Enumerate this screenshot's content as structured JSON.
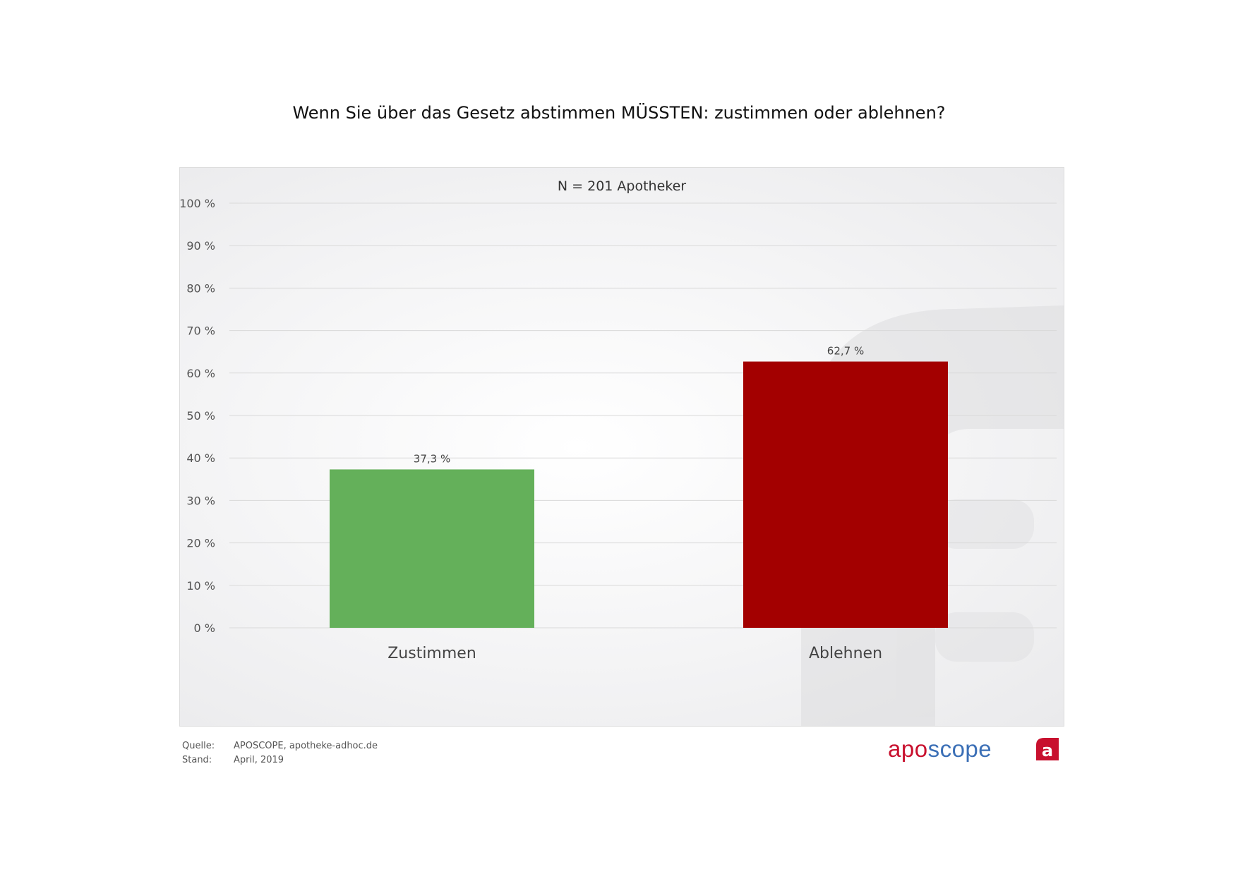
{
  "title": "Wenn Sie über das Gesetz abstimmen MÜSSTEN: zustimmen oder ablehnen?",
  "chart_data": {
    "type": "bar",
    "subtitle": "N = 201 Apotheker",
    "categories": [
      "Zustimmen",
      "Ablehnen"
    ],
    "values": [
      37.3,
      62.7
    ],
    "value_labels": [
      "37,3 %",
      "62,7 %"
    ],
    "colors": [
      "#64b05a",
      "#a30000"
    ],
    "ylim": [
      0,
      100
    ],
    "yticks": [
      0,
      10,
      20,
      30,
      40,
      50,
      60,
      70,
      80,
      90,
      100
    ],
    "ytick_labels": [
      "0 %",
      "10 %",
      "20 %",
      "30 %",
      "40 %",
      "50 %",
      "60 %",
      "70 %",
      "80 %",
      "90 %",
      "100 %"
    ],
    "grid": true,
    "legend": "none"
  },
  "footer": {
    "source_label": "Quelle:",
    "source_value": "APOSCOPE, apotheke-adhoc.de",
    "date_label": "Stand:",
    "date_value": "April, 2019"
  },
  "brand": {
    "word_apo": "apo",
    "word_scope": "scope",
    "logo_letter": "a",
    "color_apo": "#c8102e",
    "color_scope": "#3b6fb6",
    "icon": "apotheke-adhoc-logo-icon"
  }
}
